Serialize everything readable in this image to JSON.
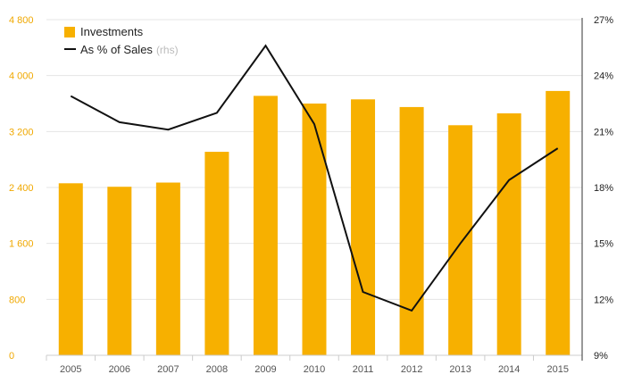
{
  "chart_data": {
    "type": "bar",
    "title": "",
    "xlabel": "",
    "ylabel": "",
    "categories": [
      "2005",
      "2006",
      "2007",
      "2008",
      "2009",
      "2010",
      "2011",
      "2012",
      "2013",
      "2014",
      "2015"
    ],
    "series": [
      {
        "name": "Investments",
        "type": "bar",
        "axis": "left",
        "values": [
          2460,
          2410,
          2470,
          2910,
          3710,
          3600,
          3660,
          3550,
          3290,
          3460,
          3780
        ]
      },
      {
        "name": "As % of Sales",
        "name_suffix": "(rhs)",
        "type": "line",
        "axis": "right",
        "values": [
          22.9,
          21.5,
          21.1,
          22.0,
          25.6,
          21.4,
          12.4,
          11.4,
          15.0,
          18.4,
          20.1
        ]
      }
    ],
    "y_left": {
      "ylim": [
        0,
        4800
      ],
      "ticks": [
        0,
        800,
        1600,
        2400,
        3200,
        4000,
        4800
      ],
      "tick_labels": [
        "0",
        "800",
        "1 600",
        "2 400",
        "3 200",
        "4 000",
        "4 800"
      ]
    },
    "y_right": {
      "ylim": [
        9,
        27
      ],
      "ticks": [
        9,
        12,
        15,
        18,
        21,
        24,
        27
      ],
      "tick_labels": [
        "9%",
        "12%",
        "15%",
        "18%",
        "21%",
        "24%",
        "27%"
      ]
    },
    "grid": true,
    "legend_position": "top-left",
    "colors": {
      "bar": "#f7b000",
      "line": "#111111",
      "left_tick_text": "#f0a800",
      "right_tick_text": "#222222",
      "x_tick_text": "#555555",
      "legend_muted": "#bbbbbb",
      "grid": "#e4e4e4",
      "axis": "#cccccc"
    }
  }
}
